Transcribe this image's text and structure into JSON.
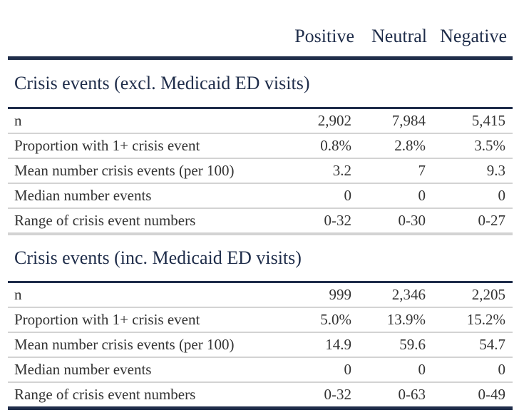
{
  "columns": {
    "positive": "Positive",
    "neutral": "Neutral",
    "negative": "Negative"
  },
  "groups": [
    {
      "title": "Crisis events (excl. Medicaid ED visits)",
      "rows": [
        {
          "label": "n",
          "positive": "2,902",
          "neutral": "7,984",
          "negative": "5,415"
        },
        {
          "label": "Proportion with 1+ crisis event",
          "positive": "0.8%",
          "neutral": "2.8%",
          "negative": "3.5%"
        },
        {
          "label": "Mean number crisis events (per 100)",
          "positive": "3.2",
          "neutral": "7",
          "negative": "9.3"
        },
        {
          "label": "Median number events",
          "positive": "0",
          "neutral": "0",
          "negative": "0"
        },
        {
          "label": "Range of crisis event numbers",
          "positive": "0-32",
          "neutral": "0-30",
          "negative": "0-27"
        }
      ]
    },
    {
      "title": "Crisis events (inc. Medicaid ED visits)",
      "rows": [
        {
          "label": "n",
          "positive": "999",
          "neutral": "2,346",
          "negative": "2,205"
        },
        {
          "label": "Proportion with 1+ crisis event",
          "positive": "5.0%",
          "neutral": "13.9%",
          "negative": "15.2%"
        },
        {
          "label": "Mean number crisis events (per 100)",
          "positive": "14.9",
          "neutral": "59.6",
          "negative": "54.7"
        },
        {
          "label": "Median number events",
          "positive": "0",
          "neutral": "0",
          "negative": "0"
        },
        {
          "label": "Range of crisis event numbers",
          "positive": "0-32",
          "neutral": "0-63",
          "negative": "0-49"
        }
      ]
    }
  ]
}
